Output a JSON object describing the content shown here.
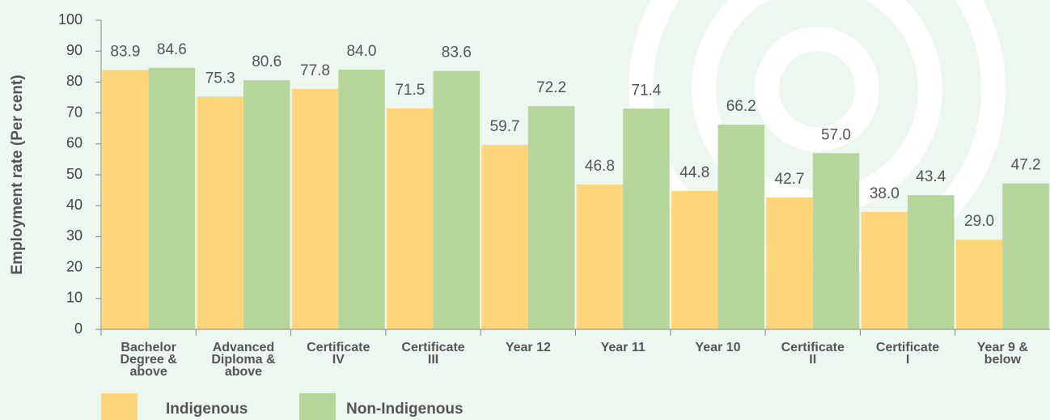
{
  "chart_data": {
    "type": "bar",
    "y_label": "Employment rate (Per cent)",
    "categories": [
      [
        "Bachelor",
        "Degree &",
        "above"
      ],
      [
        "Advanced",
        "Diploma &",
        "above"
      ],
      [
        "Certificate",
        "IV"
      ],
      [
        "Certificate",
        "III"
      ],
      [
        "Year 12"
      ],
      [
        "Year 11"
      ],
      [
        "Year 10"
      ],
      [
        "Certificate",
        "II"
      ],
      [
        "Certificate",
        "I"
      ],
      [
        "Year 9 &",
        "below"
      ]
    ],
    "series": [
      {
        "name": "Indigenous",
        "color": "#fdd67a",
        "values": [
          83.9,
          75.3,
          77.8,
          71.5,
          59.7,
          46.8,
          44.8,
          42.7,
          38.0,
          29.0
        ],
        "value_labels": [
          "83.9",
          "75.3",
          "77.8",
          "71.5",
          "59.7",
          "46.8",
          "44.8",
          "42.7",
          "38.0",
          "29.0"
        ]
      },
      {
        "name": "Non-Indigenous",
        "color": "#b5d59a",
        "values": [
          84.6,
          80.6,
          84.0,
          83.6,
          72.2,
          71.4,
          66.2,
          57.0,
          43.4,
          47.2
        ],
        "value_labels": [
          "84.6",
          "80.6",
          "84.0",
          "83.6",
          "72.2",
          "71.4",
          "66.2",
          "57.0",
          "43.4",
          "47.2"
        ]
      }
    ],
    "ylim": [
      0,
      100
    ],
    "yticks": [
      0,
      10,
      20,
      30,
      40,
      50,
      60,
      70,
      80,
      90,
      100
    ],
    "legend": "bottom-left"
  }
}
